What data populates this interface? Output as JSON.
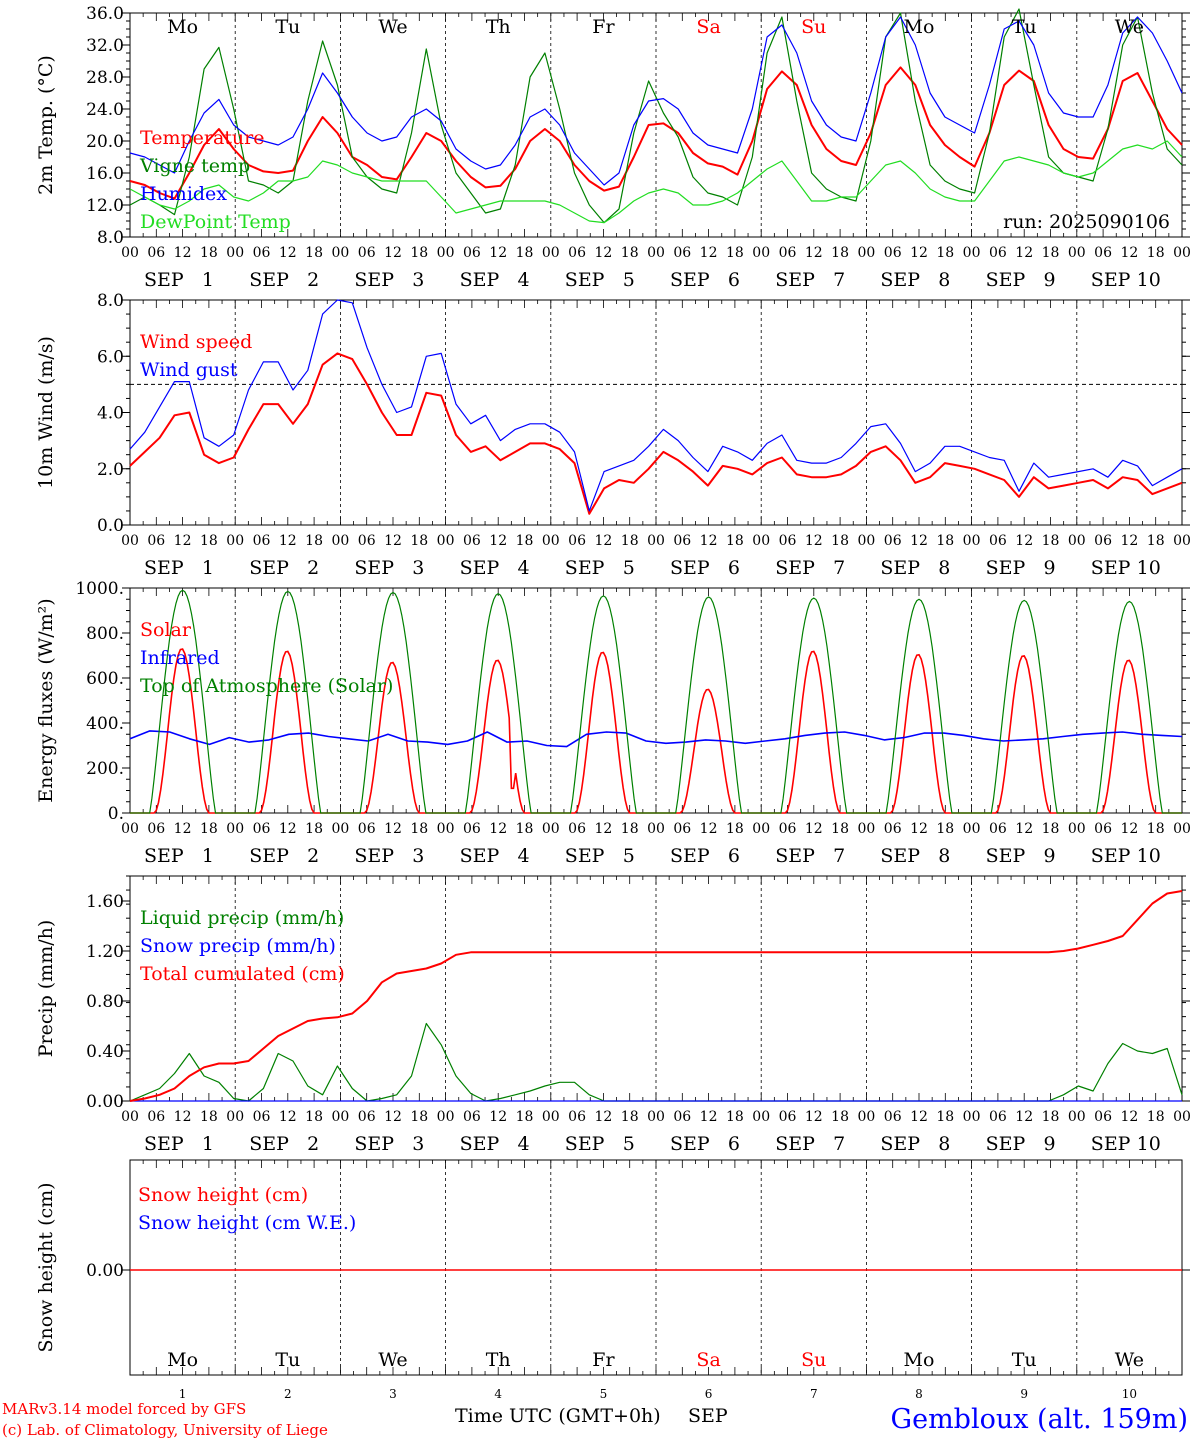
{
  "colors": {
    "red": "#ff0000",
    "green": "#008000",
    "blue": "#0000ff",
    "lightgreen": "#22dd22",
    "black": "#000000"
  },
  "footer": {
    "model_line": "MARv3.14 model forced by GFS",
    "credit_line": "(c) Lab. of Climatology, University of Liege",
    "time_label": "Time UTC (GMT+0h)",
    "month_label": "SEP",
    "station": "Gembloux (alt. 159m)"
  },
  "chart_data": [
    {
      "type": "line",
      "id": "temperature",
      "ylabel": "2m Temp. (°C)",
      "ylim": [
        8,
        36
      ],
      "yticks": [
        "8.0",
        "12.0",
        "16.0",
        "20.0",
        "24.0",
        "28.0",
        "32.0",
        "36.0"
      ],
      "annotation": "run: 2025090106",
      "day_names": [
        "Mo",
        "Tu",
        "We",
        "Th",
        "Fr",
        "Sa",
        "Su",
        "Mo",
        "Tu",
        "We"
      ],
      "weekend_days": [
        "Sa",
        "Su"
      ],
      "series": [
        {
          "name": "Temperature",
          "color": "#ff0000",
          "values": [
            15.0,
            14.5,
            13.5,
            12.8,
            16.0,
            19.5,
            21.5,
            19.0,
            17.0,
            16.2,
            16.0,
            16.3,
            20.0,
            23.0,
            21.0,
            18.0,
            17.0,
            15.5,
            15.2,
            18.0,
            21.0,
            20.0,
            17.5,
            15.5,
            14.2,
            14.4,
            16.5,
            20.0,
            21.5,
            20.0,
            17.0,
            15.0,
            13.8,
            14.3,
            18.0,
            22.0,
            22.2,
            21.0,
            18.5,
            17.2,
            16.8,
            15.8,
            20.0,
            26.5,
            28.7,
            27.0,
            22.0,
            19.0,
            17.5,
            17.0,
            21.0,
            27.0,
            29.2,
            27.0,
            22.0,
            19.5,
            18.0,
            16.8,
            21.0,
            27.0,
            28.8,
            27.5,
            22.0,
            19.0,
            18.0,
            17.8,
            21.5,
            27.5,
            28.5,
            25.0,
            21.5,
            19.5
          ]
        },
        {
          "name": "Vigne temp",
          "color": "#008000",
          "values": [
            12.0,
            13.0,
            12.0,
            10.8,
            18.0,
            29.0,
            31.7,
            24.0,
            15.0,
            14.5,
            13.5,
            15.0,
            25.0,
            32.5,
            27.0,
            18.0,
            15.5,
            14.0,
            13.5,
            21.0,
            31.5,
            22.0,
            16.0,
            13.5,
            11.0,
            11.5,
            17.0,
            28.0,
            31.0,
            24.0,
            16.0,
            12.0,
            9.8,
            11.5,
            21.0,
            27.5,
            23.5,
            20.5,
            15.5,
            13.5,
            13.0,
            12.0,
            18.0,
            31.0,
            35.5,
            25.0,
            16.0,
            14.0,
            13.0,
            12.5,
            20.0,
            33.0,
            36.0,
            25.0,
            17.0,
            15.0,
            14.0,
            13.5,
            21.0,
            33.0,
            36.5,
            27.0,
            18.0,
            16.0,
            15.5,
            15.0,
            21.5,
            32.0,
            35.5,
            26.0,
            19.0,
            17.0
          ]
        },
        {
          "name": "Humidex",
          "color": "#0000ff",
          "values": [
            18.5,
            18.0,
            17.0,
            16.0,
            20.0,
            23.5,
            25.2,
            22.0,
            20.5,
            20.0,
            19.5,
            20.5,
            24.0,
            28.5,
            26.0,
            23.0,
            21.0,
            20.0,
            20.5,
            23.0,
            24.0,
            22.5,
            19.0,
            17.5,
            16.5,
            17.0,
            19.5,
            23.0,
            24.0,
            22.0,
            18.5,
            16.5,
            14.5,
            16.0,
            22.0,
            25.0,
            25.3,
            24.0,
            21.0,
            19.5,
            19.0,
            18.5,
            24.0,
            33.0,
            34.5,
            31.0,
            25.0,
            22.0,
            20.5,
            20.0,
            26.0,
            33.0,
            35.5,
            32.0,
            26.0,
            23.0,
            22.0,
            21.0,
            27.0,
            34.0,
            35.0,
            32.0,
            26.0,
            23.5,
            23.0,
            23.0,
            27.0,
            33.5,
            35.5,
            33.5,
            30.0,
            26.0
          ]
        },
        {
          "name": "DewPoint Temp",
          "color": "#22dd22",
          "values": [
            14.0,
            13.0,
            12.0,
            11.5,
            12.5,
            14.0,
            14.5,
            13.0,
            12.5,
            13.5,
            15.0,
            15.0,
            15.5,
            17.5,
            17.0,
            16.0,
            15.5,
            15.0,
            15.0,
            15.0,
            15.0,
            13.0,
            11.0,
            11.5,
            12.0,
            12.5,
            12.5,
            12.5,
            12.5,
            12.0,
            11.0,
            10.0,
            9.8,
            11.0,
            12.5,
            13.5,
            14.0,
            13.5,
            12.0,
            12.0,
            12.5,
            13.5,
            15.0,
            16.5,
            17.5,
            15.0,
            12.5,
            12.5,
            13.0,
            13.0,
            15.0,
            17.0,
            17.5,
            16.0,
            14.0,
            13.0,
            12.5,
            12.5,
            15.0,
            17.5,
            18.0,
            17.5,
            17.0,
            16.0,
            15.5,
            16.0,
            17.5,
            19.0,
            19.5,
            19.0,
            20.0,
            18.0
          ]
        }
      ]
    },
    {
      "type": "line",
      "id": "wind",
      "ylabel": "10m Wind (m/s)",
      "ylim": [
        0,
        8
      ],
      "yticks": [
        "0.0",
        "2.0",
        "4.0",
        "6.0",
        "8.0"
      ],
      "reference_line": 5.0,
      "series": [
        {
          "name": "Wind speed",
          "color": "#ff0000",
          "values": [
            2.1,
            2.6,
            3.1,
            3.9,
            4.0,
            2.5,
            2.2,
            2.4,
            3.4,
            4.3,
            4.3,
            3.6,
            4.3,
            5.7,
            6.1,
            5.9,
            5.0,
            4.0,
            3.2,
            3.2,
            4.7,
            4.6,
            3.2,
            2.6,
            2.8,
            2.3,
            2.6,
            2.9,
            2.9,
            2.7,
            2.2,
            0.4,
            1.3,
            1.6,
            1.5,
            2.0,
            2.6,
            2.3,
            1.9,
            1.4,
            2.1,
            2.0,
            1.8,
            2.2,
            2.4,
            1.8,
            1.7,
            1.7,
            1.8,
            2.1,
            2.6,
            2.8,
            2.3,
            1.5,
            1.7,
            2.2,
            2.1,
            2.0,
            1.8,
            1.6,
            1.0,
            1.7,
            1.3,
            1.4,
            1.5,
            1.6,
            1.3,
            1.7,
            1.6,
            1.1,
            1.3,
            1.5
          ]
        },
        {
          "name": "Wind gust",
          "color": "#0000ff",
          "values": [
            2.7,
            3.3,
            4.2,
            5.1,
            5.1,
            3.1,
            2.8,
            3.2,
            4.8,
            5.8,
            5.8,
            4.8,
            5.5,
            7.5,
            8.0,
            7.9,
            6.3,
            5.0,
            4.0,
            4.2,
            6.0,
            6.1,
            4.3,
            3.6,
            3.9,
            3.0,
            3.4,
            3.6,
            3.6,
            3.3,
            2.6,
            0.5,
            1.9,
            2.1,
            2.3,
            2.8,
            3.4,
            3.0,
            2.4,
            1.9,
            2.8,
            2.6,
            2.3,
            2.9,
            3.2,
            2.3,
            2.2,
            2.2,
            2.4,
            2.9,
            3.5,
            3.6,
            2.9,
            1.9,
            2.2,
            2.8,
            2.8,
            2.6,
            2.4,
            2.3,
            1.2,
            2.2,
            1.7,
            1.8,
            1.9,
            2.0,
            1.7,
            2.3,
            2.1,
            1.4,
            1.7,
            2.0
          ]
        }
      ]
    },
    {
      "type": "line",
      "id": "energy",
      "ylabel": "Energy fluxes (W/m²)",
      "ylim": [
        0,
        1000
      ],
      "yticks": [
        "0.",
        "200.",
        "400.",
        "600.",
        "800.",
        "1000."
      ],
      "series": [
        {
          "name": "Solar",
          "color": "#ff0000",
          "peaks": [
            730,
            720,
            670,
            680,
            715,
            550,
            720,
            705,
            700,
            680
          ],
          "notch": {
            "day": 4,
            "from_hour": 14.5,
            "to_hour": 16,
            "value": 110
          }
        },
        {
          "name": "Infrared",
          "color": "#0000ff",
          "values": [
            330,
            365,
            360,
            330,
            305,
            335,
            315,
            325,
            350,
            355,
            340,
            330,
            320,
            350,
            320,
            315,
            305,
            320,
            360,
            315,
            320,
            300,
            295,
            350,
            360,
            355,
            320,
            310,
            315,
            325,
            320,
            310,
            320,
            330,
            345,
            355,
            360,
            345,
            325,
            335,
            355,
            355,
            345,
            330,
            320,
            325,
            330,
            340,
            350,
            355,
            360,
            350,
            345,
            340
          ]
        },
        {
          "name": "Top of Atmosphere (Solar)",
          "color": "#008000",
          "peaks": [
            990,
            985,
            980,
            975,
            965,
            960,
            955,
            950,
            945,
            940
          ]
        }
      ]
    },
    {
      "type": "line",
      "id": "precip",
      "ylabel": "Precip (mm/h)",
      "ylim": [
        0,
        1.8
      ],
      "yticks": [
        "0.00",
        "0.40",
        "0.80",
        "1.20",
        "1.60"
      ],
      "series": [
        {
          "name": "Liquid precip (mm/h)",
          "color": "#008000",
          "values": [
            0.0,
            0.05,
            0.1,
            0.22,
            0.38,
            0.2,
            0.15,
            0.02,
            0.0,
            0.1,
            0.38,
            0.32,
            0.12,
            0.05,
            0.28,
            0.1,
            0.0,
            0.02,
            0.05,
            0.2,
            0.62,
            0.45,
            0.2,
            0.06,
            0.0,
            0.02,
            0.05,
            0.08,
            0.12,
            0.15,
            0.15,
            0.05,
            0.0,
            0.0,
            0.0,
            0.0,
            0.0,
            0.0,
            0.0,
            0.0,
            0.0,
            0.0,
            0.0,
            0.0,
            0.0,
            0.0,
            0.0,
            0.0,
            0.0,
            0.0,
            0.0,
            0.0,
            0.0,
            0.0,
            0.0,
            0.0,
            0.0,
            0.0,
            0.0,
            0.0,
            0.0,
            0.0,
            0.0,
            0.05,
            0.12,
            0.08,
            0.3,
            0.46,
            0.4,
            0.38,
            0.42,
            0.05
          ]
        },
        {
          "name": "Snow precip (mm/h)",
          "color": "#0000ff",
          "values": [
            0.0,
            0.0,
            0.0,
            0.0,
            0.0,
            0.0,
            0.0,
            0.0,
            0.0,
            0.0,
            0.0,
            0.0,
            0.0,
            0.0,
            0.0,
            0.0,
            0.0,
            0.0,
            0.0,
            0.0,
            0.0,
            0.0,
            0.0,
            0.0,
            0.0,
            0.0,
            0.0,
            0.0,
            0.0,
            0.0,
            0.0,
            0.0,
            0.0,
            0.0,
            0.0,
            0.0,
            0.0,
            0.0,
            0.0,
            0.0,
            0.0,
            0.0,
            0.0,
            0.0,
            0.0,
            0.0,
            0.0,
            0.0,
            0.0,
            0.0,
            0.0,
            0.0,
            0.0,
            0.0,
            0.0,
            0.0,
            0.0,
            0.0,
            0.0,
            0.0,
            0.0,
            0.0,
            0.0,
            0.0,
            0.0,
            0.0,
            0.0,
            0.0,
            0.0,
            0.0,
            0.0,
            0.0
          ]
        },
        {
          "name": "Total cumulated (cm)",
          "color": "#ff0000",
          "values": [
            0.0,
            0.02,
            0.05,
            0.1,
            0.2,
            0.27,
            0.3,
            0.3,
            0.32,
            0.42,
            0.52,
            0.58,
            0.64,
            0.66,
            0.67,
            0.7,
            0.8,
            0.95,
            1.02,
            1.04,
            1.06,
            1.1,
            1.17,
            1.19,
            1.19,
            1.19,
            1.19,
            1.19,
            1.19,
            1.19,
            1.19,
            1.19,
            1.19,
            1.19,
            1.19,
            1.19,
            1.19,
            1.19,
            1.19,
            1.19,
            1.19,
            1.19,
            1.19,
            1.19,
            1.19,
            1.19,
            1.19,
            1.19,
            1.19,
            1.19,
            1.19,
            1.19,
            1.19,
            1.19,
            1.19,
            1.19,
            1.19,
            1.19,
            1.19,
            1.19,
            1.19,
            1.19,
            1.19,
            1.2,
            1.22,
            1.25,
            1.28,
            1.32,
            1.45,
            1.58,
            1.66,
            1.68
          ]
        }
      ]
    },
    {
      "type": "line",
      "id": "snow",
      "ylabel": "Snow height (cm)",
      "yticks": [
        "0.00"
      ],
      "series": [
        {
          "name": "Snow height (cm)",
          "color": "#ff0000",
          "values": [
            0,
            0
          ]
        },
        {
          "name": "Snow height (cm W.E.)",
          "color": "#0000ff",
          "values": [
            0,
            0
          ]
        }
      ]
    }
  ],
  "x_axis": {
    "hour_labels": [
      "00",
      "06",
      "12",
      "18"
    ],
    "end_label": "00",
    "month_label": "SEP",
    "day_numbers": [
      "1",
      "2",
      "3",
      "4",
      "5",
      "6",
      "7",
      "8",
      "9",
      "10"
    ]
  }
}
